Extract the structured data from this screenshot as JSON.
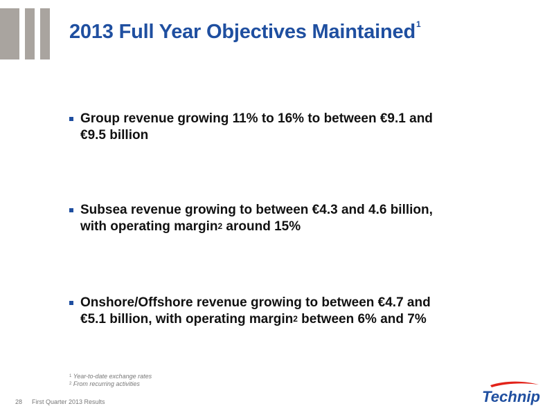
{
  "header": {
    "title": "2013 Full Year Objectives Maintained",
    "title_footnote_ref": "1"
  },
  "bullets": [
    {
      "lines": [
        {
          "pre": "Group revenue growing 11% to 16% to between €9.1 and",
          "sup": "",
          "post": ""
        },
        {
          "pre": "€9.5 billion",
          "sup": "",
          "post": ""
        }
      ]
    },
    {
      "lines": [
        {
          "pre": "Subsea revenue growing to between €4.3 and 4.6 billion,",
          "sup": "",
          "post": ""
        },
        {
          "pre": "with operating margin",
          "sup": "2",
          "post": " around 15%"
        }
      ]
    },
    {
      "lines": [
        {
          "pre": "Onshore/Offshore revenue growing to between €4.7 and",
          "sup": "",
          "post": ""
        },
        {
          "pre": "€5.1 billion, with operating margin",
          "sup": "2",
          "post": " between 6% and 7%"
        }
      ]
    }
  ],
  "footnotes": [
    {
      "ref": "1",
      "text": "Year-to-date exchange rates"
    },
    {
      "ref": "2",
      "text": "From recurring activities"
    }
  ],
  "footer": {
    "page_number": "28",
    "text": "First Quarter 2013 Results"
  },
  "logo": {
    "text": "Technip",
    "color": "#1f4fa0",
    "swoosh_color": "#e2231a"
  },
  "colors": {
    "accent": "#1f4fa0",
    "bars": "#a9a49f"
  }
}
